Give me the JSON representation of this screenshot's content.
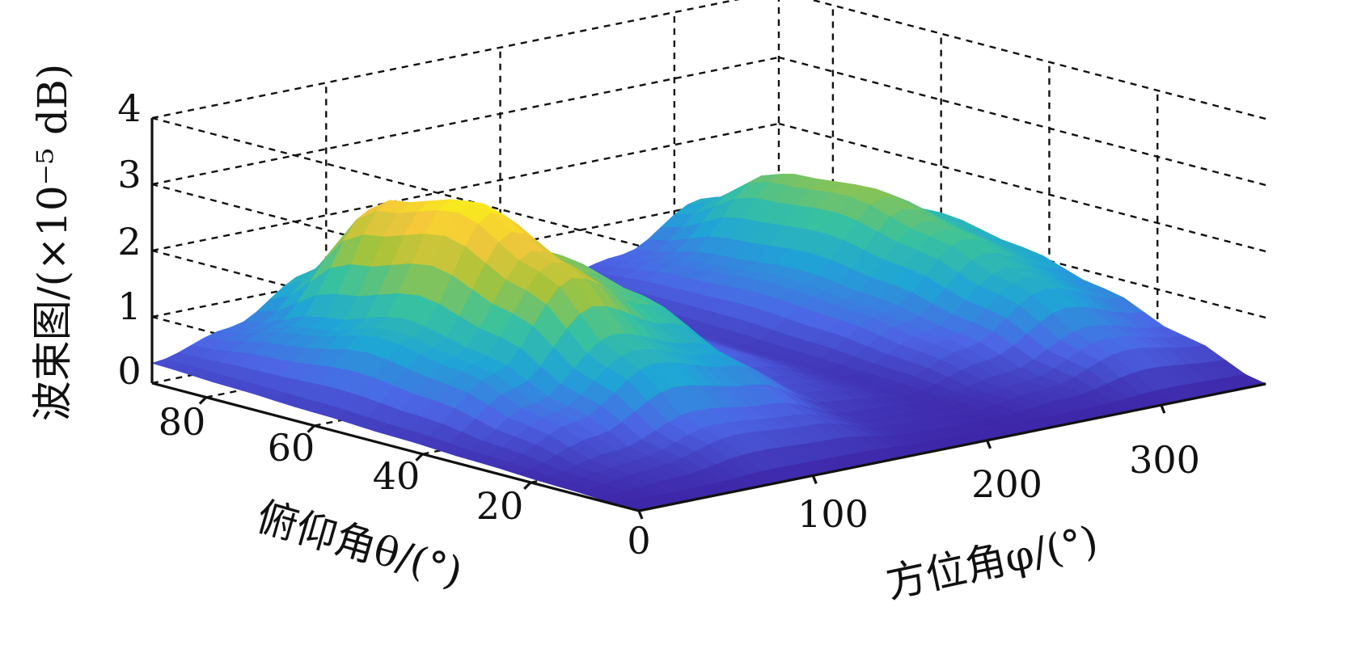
{
  "chart_data": {
    "type": "surface",
    "zlabel": "波束图/(×10⁻⁵ dB)",
    "xlabel": "方位角φ/(°)",
    "ylabel": "俯仰角θ/(°)",
    "xlim": [
      0,
      360
    ],
    "ylim": [
      0,
      90
    ],
    "zlim": [
      0,
      4
    ],
    "x_ticks": [
      "0",
      "100",
      "200",
      "300"
    ],
    "y_ticks": [
      "20",
      "40",
      "60",
      "80"
    ],
    "z_ticks": [
      "0",
      "1",
      "2",
      "3",
      "4"
    ],
    "grid": true,
    "colormap": "parula",
    "colors": [
      "#3e26a8",
      "#4c66e6",
      "#1fa5d6",
      "#39c29e",
      "#a6c33a",
      "#f5c73b",
      "#f9fb0e"
    ],
    "series": [
      {
        "name": "",
        "phi": [
          0,
          45,
          90,
          135,
          180,
          225,
          270,
          315,
          360
        ],
        "theta": [
          0,
          15,
          30,
          45,
          60,
          75,
          90
        ],
        "z": [
          [
            0.0,
            0.0,
            0.0,
            0.0,
            0.0,
            0.0,
            0.0,
            0.0,
            0.0
          ],
          [
            0.05,
            0.2,
            0.5,
            0.4,
            0.1,
            0.05,
            0.2,
            0.6,
            0.4
          ],
          [
            0.1,
            0.6,
            1.3,
            1.0,
            0.3,
            0.1,
            0.5,
            1.2,
            0.8
          ],
          [
            0.15,
            1.0,
            2.3,
            1.6,
            0.5,
            0.15,
            0.7,
            1.6,
            1.1
          ],
          [
            0.2,
            1.2,
            2.9,
            1.9,
            0.6,
            0.2,
            0.8,
            1.9,
            1.3
          ],
          [
            0.25,
            0.9,
            2.6,
            1.5,
            0.5,
            0.25,
            0.7,
            1.8,
            1.2
          ],
          [
            0.3,
            0.6,
            1.2,
            0.8,
            0.3,
            0.3,
            0.5,
            1.1,
            0.9
          ]
        ]
      }
    ]
  }
}
